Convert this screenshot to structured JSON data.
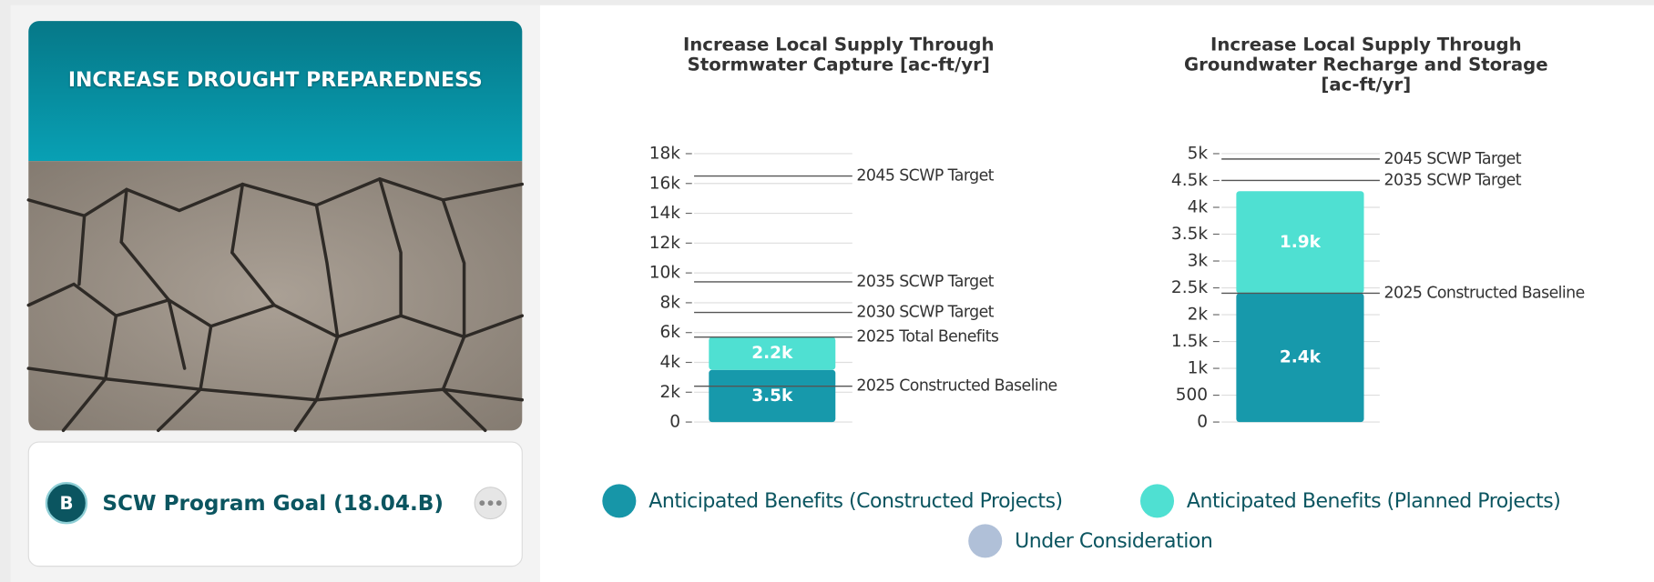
{
  "card": {
    "title": "INCREASE DROUGHT PREPAREDNESS",
    "badge": "B",
    "goal": "SCW Program Goal (18.04.B)"
  },
  "chart_data": [
    {
      "type": "bar",
      "stacked": true,
      "title": "Increase Local Supply Through Stormwater Capture [ac-ft/yr]",
      "categories": [
        null
      ],
      "series": [
        {
          "color": "#1799ab",
          "values": [
            3500
          ],
          "value_labels": [
            "3.5k"
          ]
        },
        {
          "color": "#4fe0d2",
          "values": [
            2200
          ],
          "value_labels": [
            "2.2k"
          ]
        }
      ],
      "ylim": [
        0,
        18000
      ],
      "yticks": [
        0,
        {
          "value": 2000,
          "label": "2k"
        },
        {
          "value": 4000,
          "label": "4k"
        },
        {
          "value": 6000,
          "label": "6k"
        },
        {
          "value": 8000,
          "label": "8k"
        },
        {
          "value": 10000,
          "label": "10k"
        },
        {
          "value": 12000,
          "label": "12k"
        },
        {
          "value": 14000,
          "label": "14k"
        },
        {
          "value": 16000,
          "label": "16k"
        },
        {
          "value": 18000,
          "label": "18k"
        }
      ],
      "grid": true,
      "ref_lines": [
        {
          "label": "2045 SCWP Target",
          "value": 16500
        },
        {
          "label": "2035 SCWP Target",
          "value": 9400
        },
        {
          "label": "2030 SCWP Target",
          "value": 7350
        },
        {
          "label": "2025 Total Benefits",
          "value": 5700
        },
        {
          "label": "2025 Constructed Baseline",
          "value": 2400
        }
      ]
    },
    {
      "type": "bar",
      "stacked": true,
      "title": "Increase Local Supply Through Groundwater Recharge and Storage [ac-ft/yr]",
      "categories": [
        null
      ],
      "series": [
        {
          "color": "#1799ab",
          "values": [
            2400
          ],
          "value_labels": [
            "2.4k"
          ]
        },
        {
          "color": "#4fe0d2",
          "values": [
            1900
          ],
          "value_labels": [
            "1.9k"
          ]
        }
      ],
      "ylim": [
        0,
        5000
      ],
      "yticks": [
        0,
        500,
        {
          "value": 1000,
          "label": "1k"
        },
        {
          "value": 1500,
          "label": "1.5k"
        },
        {
          "value": 2000,
          "label": "2k"
        },
        {
          "value": 2500,
          "label": "2.5k"
        },
        {
          "value": 3000,
          "label": "3k"
        },
        {
          "value": 3500,
          "label": "3.5k"
        },
        {
          "value": 4000,
          "label": "4k"
        },
        {
          "value": 4500,
          "label": "4.5k"
        },
        {
          "value": 5000,
          "label": "5k"
        }
      ],
      "grid": true,
      "ref_lines": [
        {
          "label": "2045 SCWP Target",
          "value": 4900
        },
        {
          "label": "2035 SCWP Target",
          "value": 4500
        },
        {
          "label": "2025 Constructed Baseline",
          "value": 2400
        }
      ]
    }
  ],
  "legend": [
    {
      "name": "Anticipated Benefits (Constructed Projects)",
      "color": "#1796a8"
    },
    {
      "name": "Anticipated Benefits (Planned Projects)",
      "color": "#4fe0d2"
    },
    {
      "name": "Under Consideration",
      "color": "#b0c0d8"
    }
  ]
}
